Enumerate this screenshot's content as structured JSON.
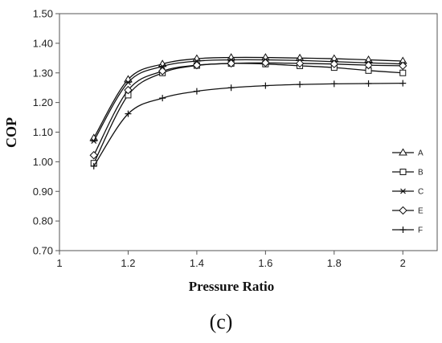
{
  "caption": "(c)",
  "chart_data": {
    "type": "line",
    "xlabel": "Pressure Ratio",
    "ylabel": "COP",
    "xlim": [
      1,
      2.1
    ],
    "ylim": [
      0.7,
      1.5
    ],
    "x_ticks": [
      "1",
      "1.2",
      "1.4",
      "1.6",
      "1.8",
      "2"
    ],
    "y_ticks": [
      "0.70",
      "0.80",
      "0.90",
      "1.00",
      "1.10",
      "1.20",
      "1.30",
      "1.40",
      "1.50"
    ],
    "grid": false,
    "legend_position": "right",
    "x": [
      1.1,
      1.2,
      1.3,
      1.4,
      1.5,
      1.6,
      1.7,
      1.8,
      1.9,
      2.0
    ],
    "series": [
      {
        "name": "A",
        "marker": "triangle",
        "values": [
          1.08,
          1.278,
          1.33,
          1.348,
          1.352,
          1.352,
          1.35,
          1.348,
          1.344,
          1.34
        ]
      },
      {
        "name": "B",
        "marker": "square",
        "values": [
          0.995,
          1.225,
          1.3,
          1.325,
          1.332,
          1.33,
          1.324,
          1.318,
          1.308,
          1.3
        ]
      },
      {
        "name": "C",
        "marker": "asterisk",
        "values": [
          1.07,
          1.268,
          1.322,
          1.34,
          1.344,
          1.344,
          1.342,
          1.338,
          1.334,
          1.33
        ]
      },
      {
        "name": "E",
        "marker": "diamond",
        "values": [
          1.022,
          1.242,
          1.306,
          1.326,
          1.332,
          1.334,
          1.332,
          1.33,
          1.326,
          1.324
        ]
      },
      {
        "name": "F",
        "marker": "plus",
        "values": [
          0.985,
          1.162,
          1.215,
          1.238,
          1.25,
          1.257,
          1.261,
          1.263,
          1.264,
          1.265
        ]
      }
    ]
  }
}
